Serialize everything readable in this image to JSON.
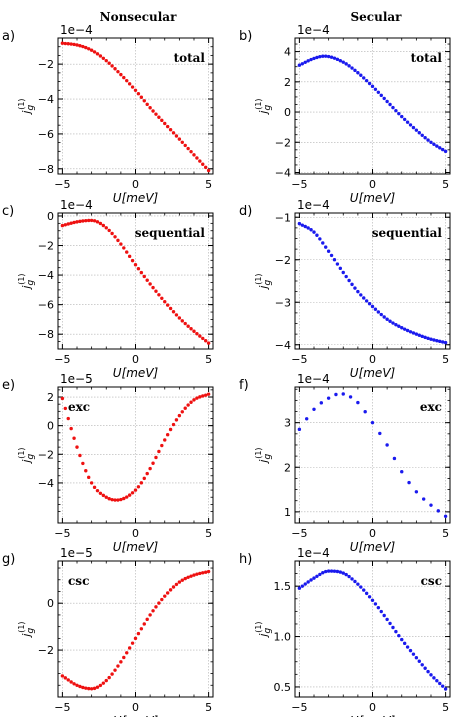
{
  "column_titles": [
    "Nonsecular",
    "Secular"
  ],
  "colors": {
    "nonsecular": "#ee1111",
    "secular": "#1a1aee",
    "grid": "#b0b0b0"
  },
  "chart_data": [
    {
      "label": "a)",
      "type": "scatter",
      "annotation": "total",
      "color": "#ee1111",
      "multiplier": "1e−4",
      "xlabel": "U[meV]",
      "ylabel": "j_g^(1)",
      "xlim": [
        -5.3,
        5.3
      ],
      "ylim": [
        -8.3,
        -0.5
      ],
      "xticks": [
        -5,
        0,
        5
      ],
      "yticks": [
        -8,
        -6,
        -4,
        -2
      ],
      "grid": true,
      "x_start": -5,
      "x_end": 5,
      "n_points": 51,
      "key_points": [
        [
          -5,
          -0.8
        ],
        [
          -4,
          -0.9
        ],
        [
          -3,
          -1.2
        ],
        [
          -2,
          -1.8
        ],
        [
          -1,
          -2.6
        ],
        [
          0,
          -3.5
        ],
        [
          1,
          -4.5
        ],
        [
          2,
          -5.4
        ],
        [
          3,
          -6.3
        ],
        [
          4,
          -7.2
        ],
        [
          5,
          -8.1
        ]
      ]
    },
    {
      "label": "b)",
      "type": "scatter",
      "annotation": "total",
      "color": "#1a1aee",
      "multiplier": "1e−4",
      "xlabel": "U[meV]",
      "ylabel": "j_g^(1)",
      "xlim": [
        -5.3,
        5.3
      ],
      "ylim": [
        -4.1,
        4.9
      ],
      "xticks": [
        -5,
        0,
        5
      ],
      "yticks": [
        -4,
        -2,
        0,
        2,
        4
      ],
      "grid": true,
      "x_start": -5,
      "x_end": 5,
      "n_points": 51,
      "key_points": [
        [
          -5,
          3.1
        ],
        [
          -4,
          3.55
        ],
        [
          -3.3,
          3.7
        ],
        [
          -2,
          3.3
        ],
        [
          -1,
          2.6
        ],
        [
          0,
          1.7
        ],
        [
          1,
          0.7
        ],
        [
          2,
          -0.3
        ],
        [
          3,
          -1.2
        ],
        [
          4,
          -2.0
        ],
        [
          5,
          -2.6
        ]
      ]
    },
    {
      "label": "c)",
      "type": "scatter",
      "annotation": "sequential",
      "color": "#ee1111",
      "multiplier": "1e−4",
      "xlabel": "U[meV]",
      "ylabel": "j_g^(1)",
      "xlim": [
        -5.3,
        5.3
      ],
      "ylim": [
        -9.0,
        0.2
      ],
      "xticks": [
        -5,
        0,
        5
      ],
      "yticks": [
        -8,
        -6,
        -4,
        -2,
        0
      ],
      "grid": true,
      "x_start": -5,
      "x_end": 5,
      "n_points": 51,
      "key_points": [
        [
          -5,
          -0.65
        ],
        [
          -4,
          -0.4
        ],
        [
          -3,
          -0.3
        ],
        [
          -2,
          -0.8
        ],
        [
          -1,
          -1.9
        ],
        [
          0,
          -3.3
        ],
        [
          1,
          -4.6
        ],
        [
          2,
          -5.8
        ],
        [
          3,
          -6.9
        ],
        [
          4,
          -7.8
        ],
        [
          5,
          -8.6
        ]
      ]
    },
    {
      "label": "d)",
      "type": "scatter",
      "annotation": "sequential",
      "color": "#1a1aee",
      "multiplier": "1e−4",
      "xlabel": "U[meV]",
      "ylabel": "j_g^(1)",
      "xlim": [
        -5.3,
        5.3
      ],
      "ylim": [
        -4.1,
        -0.9
      ],
      "xticks": [
        -5,
        0,
        5
      ],
      "yticks": [
        -4,
        -3,
        -2,
        -1
      ],
      "grid": true,
      "x_start": -5,
      "x_end": 5,
      "n_points": 51,
      "key_points": [
        [
          -5,
          -1.15
        ],
        [
          -4,
          -1.35
        ],
        [
          -3,
          -1.8
        ],
        [
          -2,
          -2.3
        ],
        [
          -1,
          -2.75
        ],
        [
          0,
          -3.1
        ],
        [
          1,
          -3.4
        ],
        [
          2,
          -3.6
        ],
        [
          3,
          -3.75
        ],
        [
          4,
          -3.87
        ],
        [
          5,
          -3.95
        ]
      ]
    },
    {
      "label": "e)",
      "type": "scatter",
      "annotation": "exc",
      "color": "#ee1111",
      "multiplier": "1e−5",
      "xlabel": "U[meV]",
      "ylabel": "j_g^(1)",
      "xlim": [
        -5.3,
        5.3
      ],
      "ylim": [
        -6.8,
        2.7
      ],
      "xticks": [
        -5,
        0,
        5
      ],
      "yticks": [
        -4,
        -2,
        0,
        2
      ],
      "grid": true,
      "x_start": -5,
      "x_end": 5,
      "n_points": 51,
      "key_points": [
        [
          -5,
          1.9
        ],
        [
          -4,
          -1.5
        ],
        [
          -3,
          -4.0
        ],
        [
          -2,
          -5.0
        ],
        [
          -1.3,
          -5.2
        ],
        [
          0,
          -4.5
        ],
        [
          1,
          -3.0
        ],
        [
          2,
          -1.0
        ],
        [
          3,
          0.7
        ],
        [
          4,
          1.8
        ],
        [
          5,
          2.2
        ]
      ]
    },
    {
      "label": "f)",
      "type": "scatter",
      "annotation": "exc",
      "color": "#1a1aee",
      "multiplier": "1e−4",
      "xlabel": "U[meV]",
      "ylabel": "j_g^(1)",
      "xlim": [
        -5.3,
        5.3
      ],
      "ylim": [
        0.75,
        3.8
      ],
      "xticks": [
        -5,
        0,
        5
      ],
      "yticks": [
        1,
        2,
        3
      ],
      "grid": true,
      "x_start": -5,
      "x_end": 5,
      "n_points": 21,
      "key_points": [
        [
          -5,
          2.85
        ],
        [
          -4,
          3.3
        ],
        [
          -3,
          3.55
        ],
        [
          -2.2,
          3.65
        ],
        [
          -1,
          3.45
        ],
        [
          0,
          3.0
        ],
        [
          1,
          2.5
        ],
        [
          2,
          1.9
        ],
        [
          3,
          1.45
        ],
        [
          4,
          1.15
        ],
        [
          5,
          0.9
        ]
      ]
    },
    {
      "label": "g)",
      "type": "scatter",
      "annotation": "csc",
      "color": "#ee1111",
      "multiplier": "1e−5",
      "xlabel": "U[meV]",
      "ylabel": "j_g^(1)",
      "xlim": [
        -5.3,
        5.3
      ],
      "ylim": [
        -4.0,
        1.8
      ],
      "xticks": [
        -5,
        0,
        5
      ],
      "yticks": [
        -2,
        0
      ],
      "grid": true,
      "x_start": -5,
      "x_end": 5,
      "n_points": 51,
      "key_points": [
        [
          -5,
          -3.1
        ],
        [
          -4,
          -3.5
        ],
        [
          -3,
          -3.65
        ],
        [
          -2,
          -3.3
        ],
        [
          -1,
          -2.5
        ],
        [
          0,
          -1.5
        ],
        [
          1,
          -0.5
        ],
        [
          2,
          0.3
        ],
        [
          3,
          0.9
        ],
        [
          4,
          1.2
        ],
        [
          5,
          1.35
        ]
      ]
    },
    {
      "label": "h)",
      "type": "scatter",
      "annotation": "csc",
      "color": "#1a1aee",
      "multiplier": "1e−4",
      "xlabel": "U[meV]",
      "ylabel": "j_g^(1)",
      "xlim": [
        -5.3,
        5.3
      ],
      "ylim": [
        0.4,
        1.75
      ],
      "xticks": [
        -5,
        0,
        5
      ],
      "yticks": [
        0.5,
        1.0,
        1.5
      ],
      "ytick_decimals": 1,
      "grid": true,
      "x_start": -5,
      "x_end": 5,
      "n_points": 51,
      "key_points": [
        [
          -5,
          1.48
        ],
        [
          -4,
          1.58
        ],
        [
          -3,
          1.65
        ],
        [
          -2,
          1.63
        ],
        [
          -1,
          1.52
        ],
        [
          0,
          1.36
        ],
        [
          1,
          1.17
        ],
        [
          2,
          0.97
        ],
        [
          3,
          0.79
        ],
        [
          4,
          0.62
        ],
        [
          5,
          0.48
        ]
      ]
    }
  ]
}
